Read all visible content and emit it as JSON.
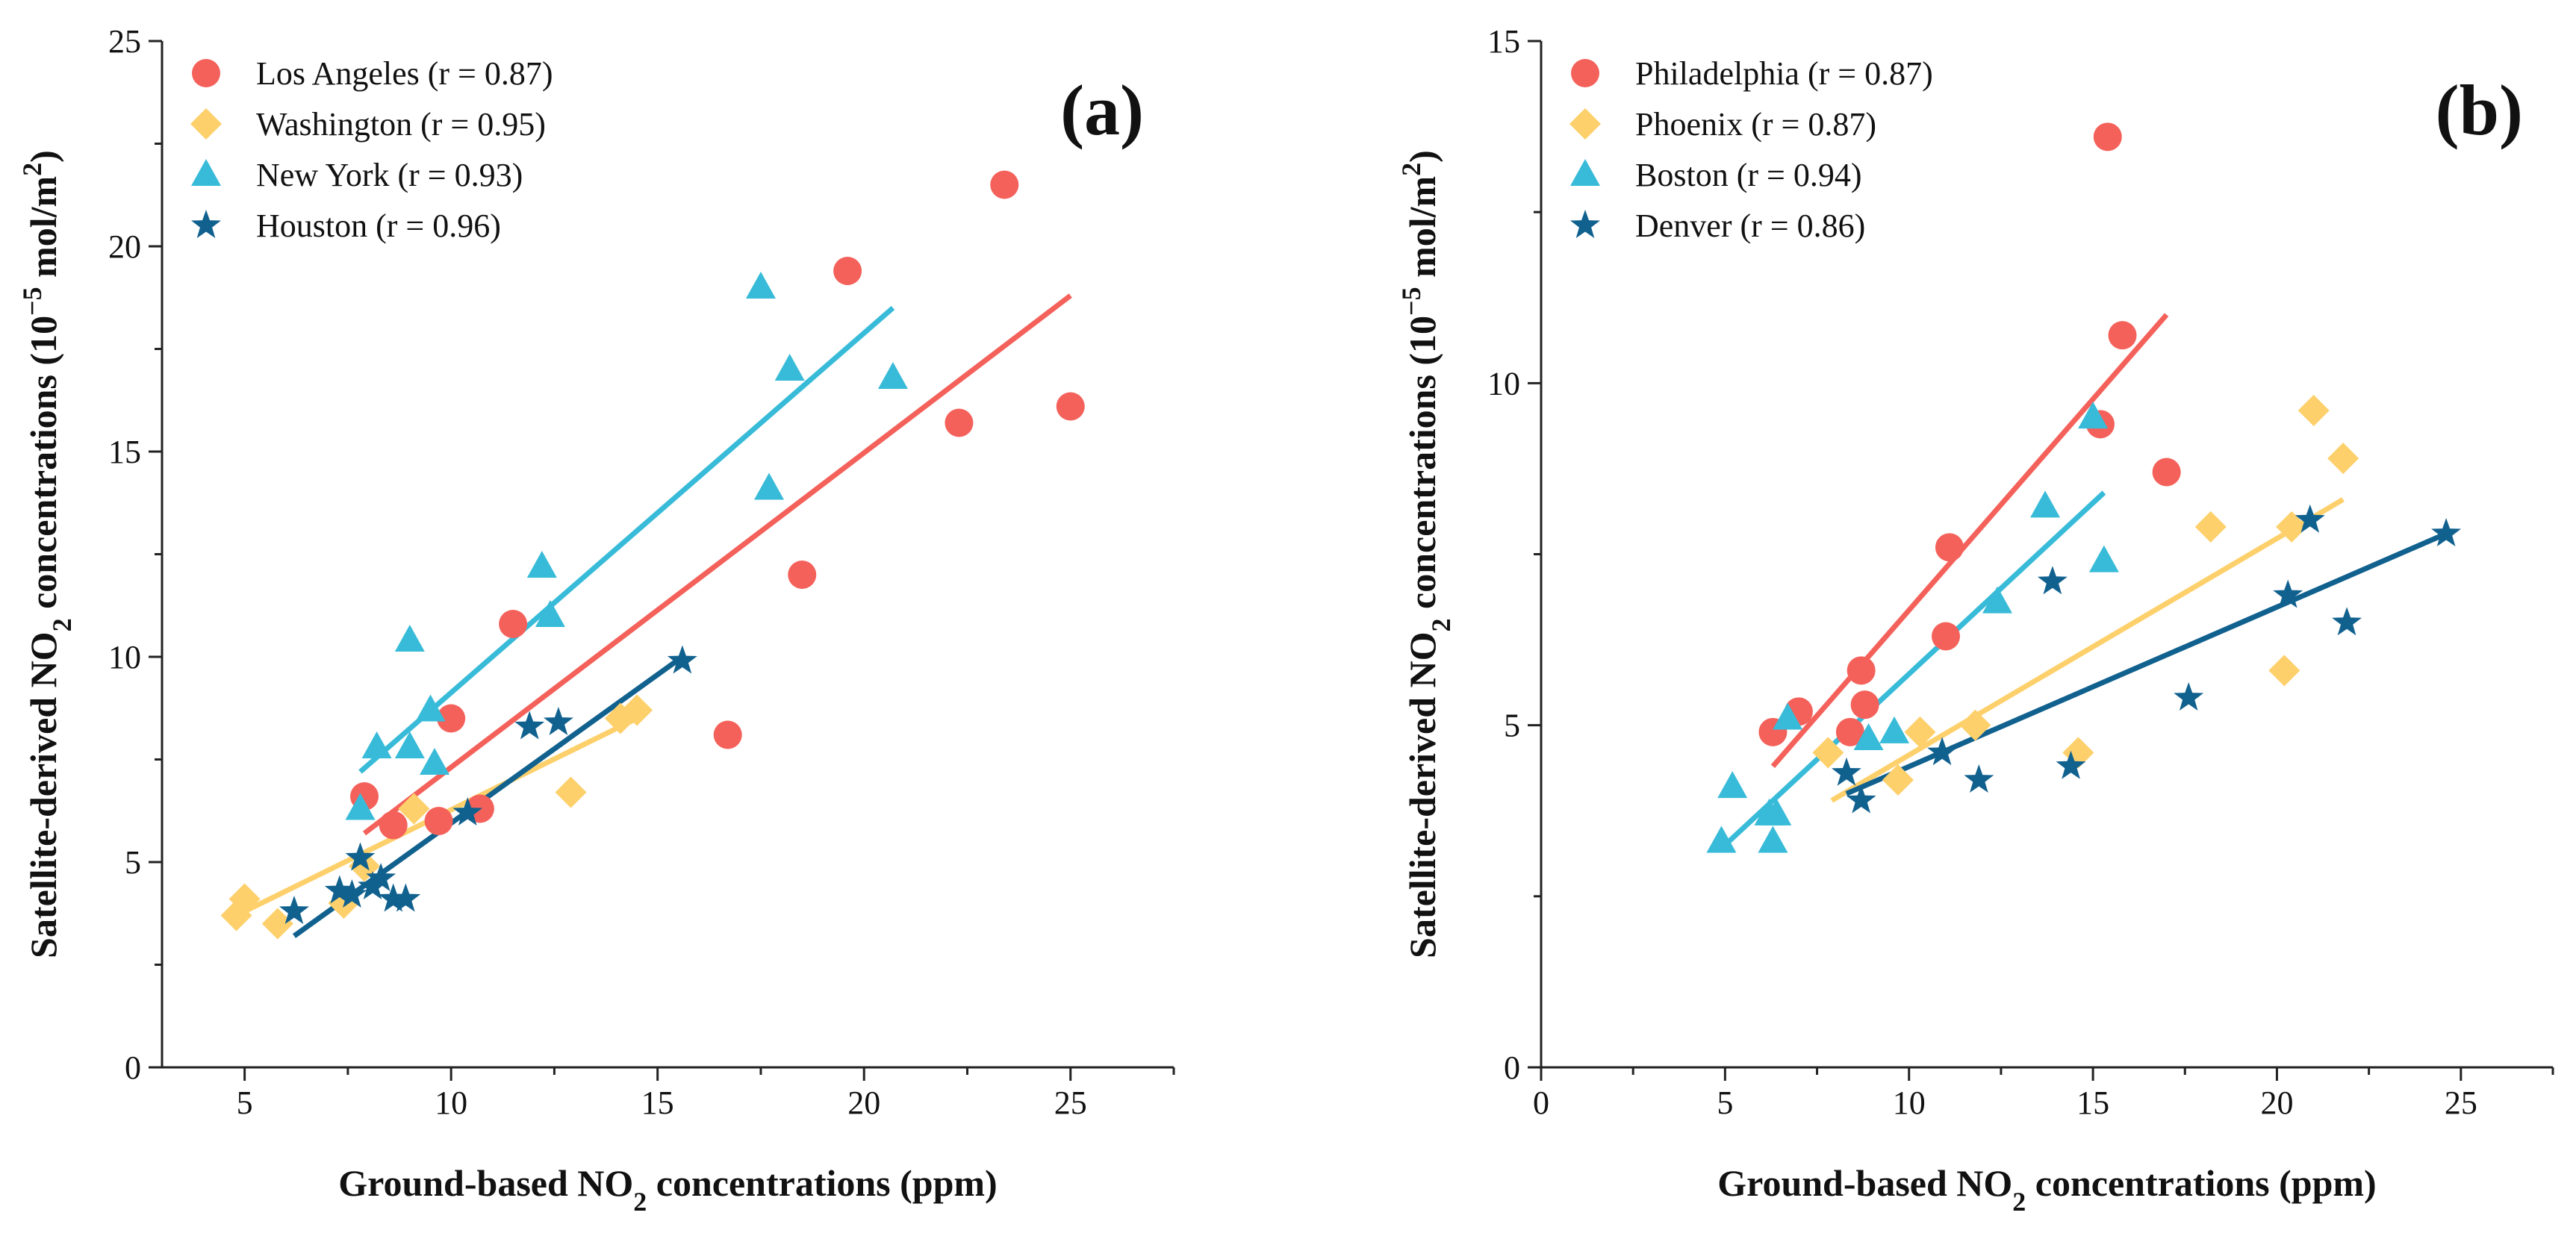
{
  "chart_data": [
    {
      "type": "scatter",
      "panel_label": "(a)",
      "xlabel": "Ground-based NO",
      "xlabel_sub": "2",
      "xlabel_tail": " concentrations (ppm)",
      "ylabel": "Satellite-derived NO",
      "ylabel_sub": "2",
      "ylabel_mid": " concentrations (10",
      "ylabel_sup": "−5",
      "ylabel_unit": " mol/m",
      "ylabel_sup2": "2",
      "ylabel_tail": ")",
      "xlim": [
        3,
        27.5
      ],
      "ylim": [
        0,
        25
      ],
      "xticks": [
        5,
        10,
        15,
        20,
        25
      ],
      "xtick_labels": [
        "5",
        "10",
        "15",
        "20",
        "25"
      ],
      "yticks": [
        0,
        5,
        10,
        15,
        20,
        25
      ],
      "ytick_labels": [
        "0",
        "5",
        "10",
        "15",
        "20",
        "25"
      ],
      "legend_position": "top-left",
      "series": [
        {
          "name": "Los Angeles (r = 0.87)",
          "marker": "circle",
          "color": "#f4615a",
          "x": [
            7.9,
            8.6,
            9.7,
            10.0,
            10.7,
            11.5,
            16.7,
            18.5,
            19.6,
            22.3,
            23.4,
            25.0
          ],
          "y": [
            6.6,
            5.9,
            6.0,
            8.5,
            6.3,
            10.8,
            8.1,
            12.0,
            19.4,
            15.7,
            21.5,
            16.1
          ],
          "fit": [
            [
              7.9,
              5.7
            ],
            [
              25.0,
              18.8
            ]
          ]
        },
        {
          "name": "Washington (r = 0.95)",
          "marker": "diamond",
          "color": "#fdd06b",
          "x": [
            4.8,
            5.0,
            5.8,
            7.4,
            7.9,
            9.1,
            12.9,
            14.1,
            14.5
          ],
          "y": [
            3.7,
            4.1,
            3.5,
            4.0,
            4.9,
            6.3,
            6.7,
            8.5,
            8.7
          ],
          "fit": [
            [
              4.8,
              3.7
            ],
            [
              14.5,
              8.5
            ]
          ]
        },
        {
          "name": "New York (r = 0.93)",
          "marker": "triangle",
          "color": "#38bbd8",
          "x": [
            7.8,
            8.2,
            9.0,
            9.0,
            9.5,
            9.6,
            12.2,
            12.4,
            17.5,
            17.7,
            18.2,
            20.7
          ],
          "y": [
            6.3,
            7.8,
            7.8,
            10.4,
            8.7,
            7.4,
            12.2,
            11.0,
            19.0,
            14.1,
            17.0,
            16.8
          ],
          "fit": [
            [
              7.8,
              7.2
            ],
            [
              20.7,
              18.5
            ]
          ]
        },
        {
          "name": "Houston (r = 0.96)",
          "marker": "star",
          "color": "#11618f",
          "x": [
            6.2,
            7.3,
            7.6,
            7.8,
            8.1,
            8.3,
            8.6,
            8.9,
            10.4,
            11.9,
            12.6,
            15.6
          ],
          "y": [
            3.8,
            4.3,
            4.2,
            5.1,
            4.4,
            4.6,
            4.1,
            4.1,
            6.2,
            8.3,
            8.4,
            9.9
          ],
          "fit": [
            [
              6.2,
              3.2
            ],
            [
              15.6,
              10.0
            ]
          ]
        }
      ]
    },
    {
      "type": "scatter",
      "panel_label": "(b)",
      "xlabel": "Ground-based NO",
      "xlabel_sub": "2",
      "xlabel_tail": " concentrations (ppm)",
      "ylabel": "Satellite-derived NO",
      "ylabel_sub": "2",
      "ylabel_mid": " concentrations (10",
      "ylabel_sup": "−5",
      "ylabel_unit": " mol/m",
      "ylabel_sup2": "2",
      "ylabel_tail": ")",
      "xlim": [
        0,
        27.5
      ],
      "ylim": [
        0,
        15
      ],
      "xticks": [
        0,
        5,
        10,
        15,
        20,
        25
      ],
      "xtick_labels": [
        "0",
        "5",
        "10",
        "15",
        "20",
        "25"
      ],
      "yticks": [
        0,
        5,
        10,
        15
      ],
      "ytick_labels": [
        "0",
        "5",
        "10",
        "15"
      ],
      "legend_position": "top-left",
      "series": [
        {
          "name": "Philadelphia (r = 0.87)",
          "marker": "circle",
          "color": "#f4615a",
          "x": [
            6.3,
            7.0,
            8.4,
            8.7,
            8.8,
            11.0,
            11.1,
            15.2,
            15.4,
            15.8,
            17.0
          ],
          "y": [
            4.9,
            5.2,
            4.9,
            5.8,
            5.3,
            6.3,
            7.6,
            9.4,
            13.6,
            10.7,
            8.7
          ],
          "fit": [
            [
              6.3,
              4.4
            ],
            [
              17.0,
              11.0
            ]
          ]
        },
        {
          "name": "Phoenix (r = 0.87)",
          "marker": "diamond",
          "color": "#fdd06b",
          "x": [
            7.8,
            9.7,
            10.3,
            11.8,
            14.6,
            18.2,
            20.2,
            20.4,
            21.0,
            21.8
          ],
          "y": [
            4.6,
            4.2,
            4.9,
            5.0,
            4.6,
            7.9,
            5.8,
            7.9,
            9.6,
            8.9
          ],
          "fit": [
            [
              7.9,
              3.9
            ],
            [
              21.8,
              8.3
            ]
          ]
        },
        {
          "name": "Boston (r = 0.94)",
          "marker": "triangle",
          "color": "#38bbd8",
          "x": [
            4.9,
            5.2,
            6.2,
            6.3,
            6.4,
            6.7,
            8.9,
            9.6,
            12.4,
            13.7,
            15.0,
            15.3
          ],
          "y": [
            3.3,
            4.1,
            3.7,
            3.3,
            3.7,
            5.1,
            4.8,
            4.9,
            6.8,
            8.2,
            9.5,
            7.4
          ],
          "fit": [
            [
              4.9,
              3.2
            ],
            [
              15.3,
              8.4
            ]
          ]
        },
        {
          "name": "Denver (r = 0.86)",
          "marker": "star",
          "color": "#11618f",
          "x": [
            8.3,
            8.7,
            10.9,
            11.9,
            13.9,
            14.4,
            17.6,
            20.3,
            20.9,
            21.9,
            24.6
          ],
          "y": [
            4.3,
            3.9,
            4.6,
            4.2,
            7.1,
            4.4,
            5.4,
            6.9,
            8.0,
            6.5,
            7.8
          ],
          "fit": [
            [
              8.3,
              4.0
            ],
            [
              24.6,
              7.8
            ]
          ]
        }
      ]
    }
  ]
}
